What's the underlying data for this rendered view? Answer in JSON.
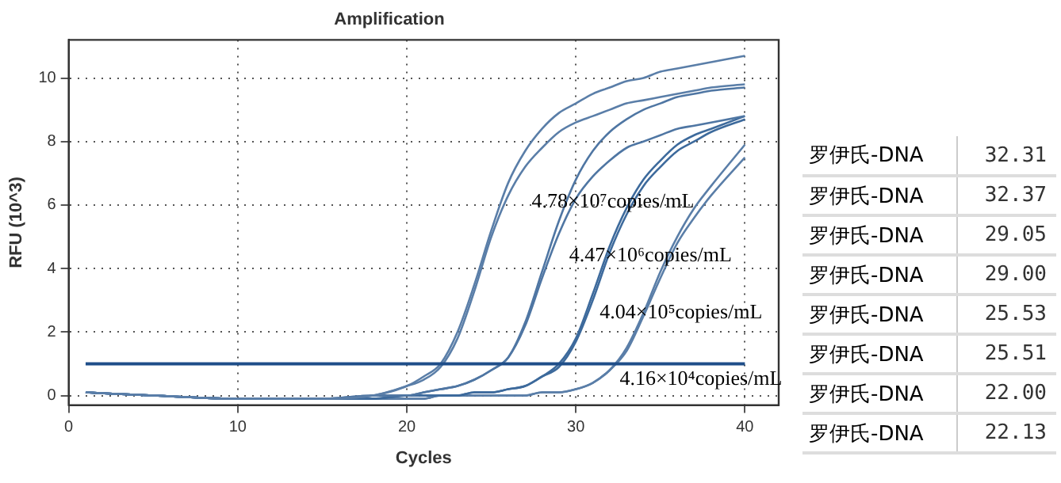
{
  "chart_data": [
    {
      "type": "line",
      "title": "Amplification",
      "xlabel": "Cycles",
      "ylabel": "RFU (10^3)",
      "x": [
        1,
        5,
        10,
        15,
        18,
        20,
        21,
        22,
        23,
        24,
        25,
        26,
        27,
        28,
        29,
        30,
        31,
        32,
        33,
        34,
        35,
        36,
        37,
        38,
        40
      ],
      "series": [
        {
          "color": "#5a7ea8",
          "values": [
            0.1,
            0,
            -0.1,
            -0.1,
            0,
            0.3,
            0.6,
            1.0,
            2.0,
            3.5,
            5.2,
            6.7,
            7.7,
            8.4,
            8.9,
            9.2,
            9.5,
            9.7,
            9.9,
            10.0,
            10.2,
            10.3,
            10.4,
            10.5,
            10.7
          ]
        },
        {
          "color": "#5a7ea8",
          "values": [
            0.1,
            0,
            -0.1,
            -0.1,
            0,
            0.3,
            0.5,
            0.9,
            1.8,
            3.3,
            5.0,
            6.3,
            7.2,
            7.8,
            8.3,
            8.6,
            8.8,
            9.0,
            9.2,
            9.3,
            9.4,
            9.5,
            9.6,
            9.7,
            9.8
          ]
        },
        {
          "color": "#4f76a3",
          "values": [
            0.1,
            0,
            -0.1,
            -0.1,
            0,
            0,
            0.1,
            0.2,
            0.3,
            0.5,
            0.8,
            1.2,
            2.3,
            3.9,
            5.5,
            6.8,
            7.7,
            8.3,
            8.7,
            9.0,
            9.2,
            9.4,
            9.5,
            9.6,
            9.7
          ]
        },
        {
          "color": "#4f76a3",
          "values": [
            0.1,
            0,
            -0.1,
            -0.1,
            0,
            0,
            0.1,
            0.2,
            0.3,
            0.5,
            0.8,
            1.2,
            2.2,
            3.7,
            5.1,
            6.2,
            6.9,
            7.4,
            7.8,
            8.0,
            8.2,
            8.4,
            8.5,
            8.6,
            8.8
          ]
        },
        {
          "color": "#3d6a9c",
          "values": [
            0.1,
            0,
            -0.1,
            -0.1,
            -0.1,
            0,
            0,
            0,
            0,
            0.1,
            0.1,
            0.2,
            0.3,
            0.6,
            1.0,
            1.8,
            3.2,
            4.7,
            5.9,
            6.8,
            7.4,
            7.9,
            8.2,
            8.4,
            8.8
          ]
        },
        {
          "color": "#3d6a9c",
          "values": [
            0.1,
            0,
            -0.1,
            -0.1,
            -0.1,
            0,
            0,
            0,
            0,
            0.1,
            0.1,
            0.2,
            0.3,
            0.6,
            0.9,
            1.7,
            3.0,
            4.5,
            5.7,
            6.6,
            7.2,
            7.7,
            8.0,
            8.3,
            8.7
          ]
        },
        {
          "color": "#5a7ea8",
          "values": [
            0.1,
            0,
            -0.1,
            -0.1,
            -0.1,
            -0.1,
            -0.1,
            0,
            0,
            0,
            0,
            0,
            0,
            0.1,
            0.1,
            0.2,
            0.4,
            0.8,
            1.5,
            2.6,
            3.9,
            5.0,
            5.9,
            6.6,
            7.9
          ]
        },
        {
          "color": "#5a7ea8",
          "values": [
            0.1,
            0,
            -0.1,
            -0.1,
            -0.1,
            -0.1,
            -0.1,
            0,
            0,
            0,
            0,
            0,
            0,
            0.1,
            0.1,
            0.2,
            0.4,
            0.8,
            1.4,
            2.5,
            3.7,
            4.8,
            5.6,
            6.3,
            7.5
          ]
        }
      ],
      "xlim": [
        0,
        42
      ],
      "xticks": [
        0,
        10,
        20,
        30,
        40
      ],
      "ylim": [
        -0.3,
        11.2
      ],
      "yticks": [
        0,
        2,
        4,
        6,
        8,
        10
      ],
      "grid": true,
      "marker": "none",
      "line_style": "solid",
      "ref_lines": [
        {
          "axis": "y",
          "value": 1,
          "color": "#1f4e89"
        }
      ],
      "annotations": [
        "4.78×10⁷copies/mL",
        "4.47×10⁶copies/mL",
        "4.04×10⁵copies/mL",
        "4.16×10⁴copies/mL"
      ]
    },
    {
      "type": "other",
      "categories": [
        "罗伊氏-DNA",
        "罗伊氏-DNA",
        "罗伊氏-DNA",
        "罗伊氏-DNA",
        "罗伊氏-DNA",
        "罗伊氏-DNA",
        "罗伊氏-DNA",
        "罗伊氏-DNA"
      ],
      "value_labels": [
        "32.31",
        "32.37",
        "29.05",
        "29.00",
        "25.53",
        "25.51",
        "22.00",
        "22.13"
      ]
    }
  ]
}
